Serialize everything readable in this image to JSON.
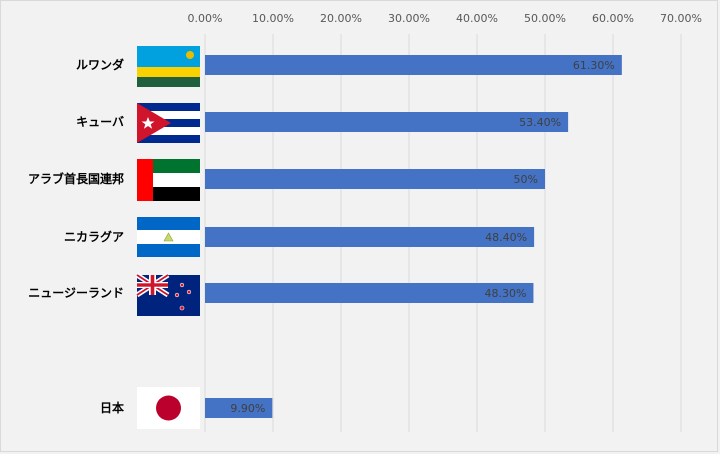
{
  "chart_data": {
    "type": "bar",
    "orientation": "horizontal",
    "categories": [
      "ルワンダ",
      "キューバ",
      "アラブ首長国連邦",
      "ニカラグア",
      "ニュージーランド",
      "日本"
    ],
    "values": [
      61.3,
      53.4,
      50.0,
      48.4,
      48.3,
      9.9
    ],
    "data_labels": [
      "61.30%",
      "53.40%",
      "50%",
      "48.40%",
      "48.30%",
      "9.90%"
    ],
    "xlim": [
      0,
      70
    ],
    "x_ticks": [
      "0.00%",
      "10.00%",
      "20.00%",
      "30.00%",
      "40.00%",
      "50.00%",
      "60.00%",
      "70.00%"
    ],
    "axis_position": "top",
    "grid": true,
    "legend": "none",
    "colors": {
      "bar": "#4472c4",
      "grid": "#d9d9d9",
      "background": "#f2f2f2",
      "tick_text": "#595959",
      "data_label_text": "#404040"
    },
    "flag_icons": [
      "rwanda-flag-icon",
      "cuba-flag-icon",
      "uae-flag-icon",
      "nicaragua-flag-icon",
      "new-zealand-flag-icon",
      "japan-flag-icon"
    ]
  }
}
